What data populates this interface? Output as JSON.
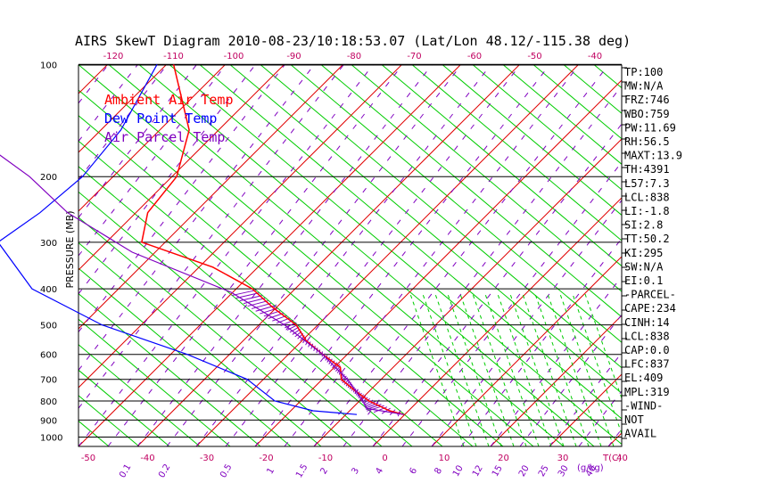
{
  "chart_data": {
    "type": "line",
    "title": "AIRS SkewT Diagram 2010-08-23/10:18:53.07 (Lat/Lon 48.12/-115.38 deg)",
    "ylabel": "PRESSURE (MB)",
    "xlabel": "T(C)",
    "mixing_ratio_unit": "(g/kg)",
    "pressure_ticks": [
      100,
      200,
      300,
      400,
      500,
      600,
      700,
      800,
      900,
      1000
    ],
    "bottom_temp_ticks": [
      -50,
      -40,
      -30,
      -20,
      -10,
      0,
      10,
      20,
      30,
      40
    ],
    "top_temp_ticks": [
      -120,
      -110,
      -100,
      -90,
      -80,
      -70,
      -60,
      -50,
      -40
    ],
    "mixing_ratio_labels": [
      "0.1",
      "0.2",
      "0.5",
      "1",
      "1.5",
      "2",
      "3",
      "4",
      "6",
      "8",
      "10",
      "12",
      "15",
      "20",
      "25",
      "30",
      "40"
    ],
    "legend": [
      {
        "label": "Ambient Air Temp",
        "color": "#ff0000"
      },
      {
        "label": "Dew Point Temp",
        "color": "#0000ff"
      },
      {
        "label": "Air Parcel Temp",
        "color": "#8000c0"
      }
    ],
    "series": [
      {
        "name": "Ambient Air Temp",
        "color": "#ff0000",
        "points": [
          [
            100,
            -72.7
          ],
          [
            150,
            -60
          ],
          [
            200,
            -55
          ],
          [
            250,
            -54.4
          ],
          [
            300,
            -50.9
          ],
          [
            350,
            -35
          ],
          [
            400,
            -25
          ],
          [
            450,
            -18.5
          ],
          [
            500,
            -12
          ],
          [
            550,
            -8
          ],
          [
            600,
            -3
          ],
          [
            650,
            2
          ],
          [
            700,
            4
          ],
          [
            750,
            8
          ],
          [
            800,
            12
          ],
          [
            850,
            17
          ],
          [
            870,
            20
          ]
        ]
      },
      {
        "name": "Dew Point Temp",
        "color": "#0000ff",
        "points": [
          [
            100,
            -75.5
          ],
          [
            150,
            -71.6
          ],
          [
            200,
            -71
          ],
          [
            250,
            -72.7
          ],
          [
            300,
            -75.3
          ],
          [
            400,
            -62.4
          ],
          [
            500,
            -45
          ],
          [
            600,
            -26
          ],
          [
            700,
            -12
          ],
          [
            800,
            -4
          ],
          [
            850,
            4
          ],
          [
            870,
            12
          ]
        ]
      },
      {
        "name": "Air Parcel Temp",
        "color": "#8000c0",
        "points": [
          [
            870,
            20
          ],
          [
            838,
            12.8
          ],
          [
            800,
            11
          ],
          [
            700,
            5
          ],
          [
            600,
            -3
          ],
          [
            500,
            -14
          ],
          [
            409,
            -28
          ],
          [
            319,
            -51
          ],
          [
            250,
            -68
          ],
          [
            200,
            -80
          ],
          [
            150,
            -98
          ],
          [
            100,
            -120
          ]
        ]
      }
    ],
    "stats": [
      "TP:100",
      "MW:N/A",
      "FRZ:746",
      "WBO:759",
      "PW:11.69",
      "RH:56.5",
      "MAXT:13.9",
      "TH:4391",
      "L57:7.3",
      "LCL:838",
      "LI:-1.8",
      "SI:2.8",
      "TT:50.2",
      "KI:295",
      "SW:N/A",
      "EI:0.1",
      "-PARCEL-",
      "CAPE:234",
      "CINH:14",
      "LCL:838",
      "CAP:0.0",
      "LFC:837",
      "EL:409",
      "MPL:319",
      "-WIND-",
      "NOT",
      "AVAIL"
    ],
    "grid": true
  }
}
